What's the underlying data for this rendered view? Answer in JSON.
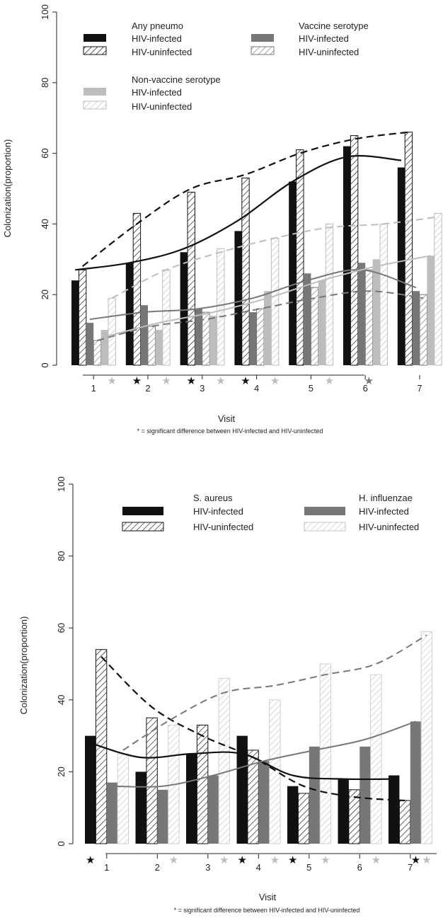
{
  "colors": {
    "black": "#111111",
    "dark_gray": "#777777",
    "light_gray": "#bdbdbd",
    "pale_gray": "#cfcfcf"
  },
  "chart_data": [
    {
      "type": "bar",
      "ylabel": "Colonization(proportion)",
      "xlabel": "Visit",
      "ylim": [
        0,
        100
      ],
      "yticks": [
        0,
        20,
        40,
        60,
        80,
        100
      ],
      "categories": [
        "1",
        "2",
        "3",
        "4",
        "5",
        "6",
        "7"
      ],
      "note": "* = significant difference between HIV-infected and HIV-uninfected",
      "legend_groups": [
        {
          "title": "Any pneumo",
          "entries": [
            "HIV-infected",
            "HIV-uninfected"
          ]
        },
        {
          "title": "Vaccine serotype",
          "entries": [
            "HIV-infected",
            "HIV-uninfected"
          ]
        },
        {
          "title": "Non-vaccine serotype",
          "entries": [
            "HIV-infected",
            "HIV-uninfected"
          ]
        }
      ],
      "series": [
        {
          "name": "Any pneumo HIV-infected",
          "color": "black",
          "hatched": false,
          "values": [
            24,
            29,
            32,
            38,
            52,
            62,
            56
          ]
        },
        {
          "name": "Any pneumo HIV-uninfected",
          "color": "black",
          "hatched": true,
          "values": [
            27,
            43,
            49,
            53,
            61,
            65,
            66
          ]
        },
        {
          "name": "Vaccine serotype HIV-infected",
          "color": "dark_gray",
          "hatched": false,
          "values": [
            12,
            17,
            16,
            15,
            26,
            29,
            21
          ]
        },
        {
          "name": "Vaccine serotype HIV-uninfected",
          "color": "dark_gray",
          "hatched": true,
          "values": [
            7,
            11,
            15,
            16,
            22,
            27,
            20
          ]
        },
        {
          "name": "Non-vaccine serotype HIV-infected",
          "color": "light_gray",
          "hatched": false,
          "values": [
            10,
            10,
            14,
            21,
            24,
            30,
            31
          ]
        },
        {
          "name": "Non-vaccine serotype HIV-uninfected",
          "color": "light_gray",
          "hatched": true,
          "values": [
            19,
            27,
            33,
            36,
            40,
            40,
            43
          ]
        }
      ],
      "trend_lines": [
        {
          "series": "Any pneumo HIV-infected",
          "color": "black",
          "dashed": false,
          "values": [
            27,
            29,
            33,
            41,
            52,
            59,
            58
          ]
        },
        {
          "series": "Any pneumo HIV-uninfected",
          "color": "black",
          "dashed": true,
          "values": [
            28,
            40,
            50,
            54,
            60,
            64,
            66
          ]
        },
        {
          "series": "Vaccine serotype HIV-infected",
          "color": "dark_gray",
          "dashed": false,
          "values": [
            13,
            15,
            16,
            19,
            24,
            27,
            22
          ]
        },
        {
          "series": "Vaccine serotype HIV-uninfected",
          "color": "dark_gray",
          "dashed": true,
          "values": [
            7,
            11,
            13,
            16,
            19,
            21,
            19
          ]
        },
        {
          "series": "Non-vaccine serotype HIV-infected",
          "color": "light_gray",
          "dashed": false,
          "values": [
            8,
            12,
            15,
            19,
            24,
            28,
            31
          ]
        },
        {
          "series": "Non-vaccine serotype HIV-uninfected",
          "color": "light_gray",
          "dashed": true,
          "values": [
            19,
            27,
            32,
            36,
            39,
            40,
            42
          ]
        }
      ],
      "significance_markers": [
        {
          "visit": 1,
          "slot": 5,
          "symbol": "*",
          "color": "light_gray"
        },
        {
          "visit": 2,
          "slot": 1,
          "symbol": "*",
          "color": "black"
        },
        {
          "visit": 2,
          "slot": 5,
          "symbol": "*",
          "color": "light_gray"
        },
        {
          "visit": 3,
          "slot": 1,
          "symbol": "*",
          "color": "black"
        },
        {
          "visit": 3,
          "slot": 5,
          "symbol": "*",
          "color": "light_gray"
        },
        {
          "visit": 4,
          "slot": 1,
          "symbol": "*",
          "color": "black"
        },
        {
          "visit": 4,
          "slot": 5,
          "symbol": "*",
          "color": "light_gray"
        },
        {
          "visit": 5,
          "slot": 5,
          "symbol": "*",
          "color": "light_gray"
        },
        {
          "visit": 6,
          "slot": 3,
          "symbol": "*",
          "color": "dark_gray"
        }
      ]
    },
    {
      "type": "bar",
      "ylabel": "Colonization(proportion)",
      "xlabel": "Visit",
      "ylim": [
        0,
        100
      ],
      "yticks": [
        0,
        20,
        40,
        60,
        80,
        100
      ],
      "categories": [
        "1",
        "2",
        "3",
        "4",
        "5",
        "6",
        "7"
      ],
      "note": "* = significant difference between HIV-infected and HIV-uninfected",
      "legend_groups": [
        {
          "title": "S. aureus",
          "entries": [
            "HIV-infected",
            "HIV-uninfected"
          ]
        },
        {
          "title": "H. influenzae",
          "entries": [
            "HIV-infected",
            "HIV-uninfected"
          ]
        }
      ],
      "series": [
        {
          "name": "S. aureus HIV-infected",
          "color": "black",
          "hatched": false,
          "values": [
            30,
            20,
            25,
            30,
            16,
            18,
            19
          ]
        },
        {
          "name": "S. aureus HIV-uninfected",
          "color": "black",
          "hatched": true,
          "values": [
            54,
            35,
            33,
            26,
            14,
            15,
            12
          ]
        },
        {
          "name": "H. influenzae HIV-infected",
          "color": "dark_gray",
          "hatched": false,
          "values": [
            17,
            15,
            19,
            23,
            27,
            27,
            34
          ]
        },
        {
          "name": "H. influenzae HIV-uninfected",
          "color": "pale_gray",
          "hatched": true,
          "values": [
            25,
            33,
            46,
            40,
            50,
            47,
            59
          ]
        }
      ],
      "trend_lines": [
        {
          "series": "S. aureus HIV-infected",
          "color": "black",
          "dashed": false,
          "values": [
            28,
            24,
            25,
            25,
            19,
            18,
            18
          ]
        },
        {
          "series": "S. aureus HIV-uninfected",
          "color": "black",
          "dashed": true,
          "values": [
            52,
            38,
            30,
            24,
            16,
            13,
            12
          ]
        },
        {
          "series": "H. influenzae HIV-infected",
          "color": "dark_gray",
          "dashed": false,
          "values": [
            16,
            16,
            19,
            23,
            26,
            29,
            34
          ]
        },
        {
          "series": "H. influenzae HIV-uninfected",
          "color": "dark_gray",
          "dashed": true,
          "values": [
            26,
            35,
            42,
            44,
            47,
            50,
            58
          ]
        }
      ],
      "significance_markers": [
        {
          "visit": 1,
          "slot": 0,
          "symbol": "*",
          "color": "black"
        },
        {
          "visit": 2,
          "slot": 3,
          "symbol": "*",
          "color": "light_gray"
        },
        {
          "visit": 3,
          "slot": 3,
          "symbol": "*",
          "color": "light_gray"
        },
        {
          "visit": 4,
          "slot": 0,
          "symbol": "*",
          "color": "black"
        },
        {
          "visit": 4,
          "slot": 3,
          "symbol": "*",
          "color": "light_gray"
        },
        {
          "visit": 5,
          "slot": 0,
          "symbol": "*",
          "color": "black"
        },
        {
          "visit": 5,
          "slot": 3,
          "symbol": "*",
          "color": "light_gray"
        },
        {
          "visit": 6,
          "slot": 3,
          "symbol": "*",
          "color": "light_gray"
        },
        {
          "visit": 7,
          "slot": 2,
          "symbol": "*",
          "color": "black"
        },
        {
          "visit": 7,
          "slot": 3,
          "symbol": "*",
          "color": "light_gray"
        }
      ]
    }
  ]
}
